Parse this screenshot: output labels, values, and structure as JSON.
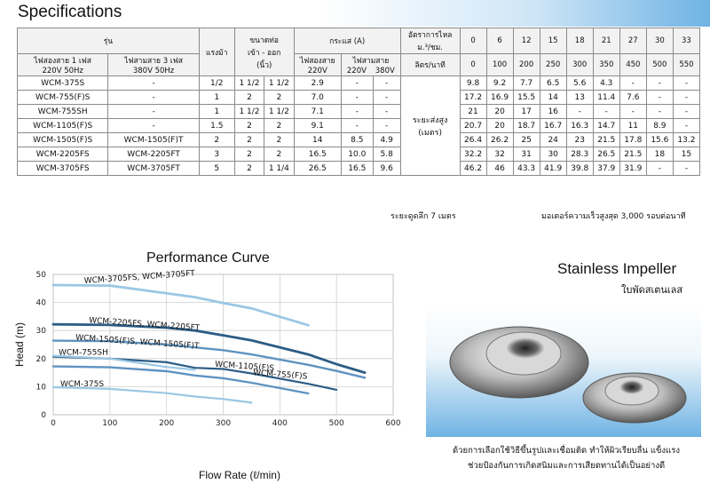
{
  "specifications": {
    "title": "Specifications",
    "headers": {
      "model": "รุ่น",
      "single_phase_l1": "ไฟสองสาย 1 เฟส",
      "single_phase_l2": "220V 50Hz",
      "three_phase_l1": "ไฟสามสาย 3 เฟส",
      "three_phase_l2": "380V 50Hz",
      "hp": "แรงม้า",
      "pipe_size_l1": "ขนาดท่อ",
      "pipe_size_l2": "เข้า - ออก",
      "pipe_size_l3": "(นิ้ว)",
      "current": "กระแส (A)",
      "current_2w": "ไฟสองสาย",
      "current_3w": "ไฟสามสาย",
      "v220": "220V",
      "v220b": "220V",
      "v380": "380V",
      "flow_rate_l1": "อัตราการไหล",
      "flow_rate_l2": "ม.³/ชม.",
      "lpm": "ลิตร/นาที",
      "head_l1": "ระยะส่งสูง",
      "head_l2": "(เมตร)"
    },
    "flow_m3h": [
      "0",
      "6",
      "12",
      "15",
      "18",
      "21",
      "27",
      "30",
      "33"
    ],
    "flow_lpm": [
      "0",
      "100",
      "200",
      "250",
      "300",
      "350",
      "450",
      "500",
      "550"
    ],
    "rows": [
      {
        "model1": "WCM-375S",
        "model3": "-",
        "hp": "1/2",
        "pipe_in": "1 1/2",
        "pipe_out": "1 1/2",
        "a220": "2.9",
        "b220": "-",
        "b380": "-",
        "heads": [
          "9.8",
          "9.2",
          "7.7",
          "6.5",
          "5.6",
          "4.3",
          "-",
          "-",
          "-"
        ]
      },
      {
        "model1": "WCM-755(F)S",
        "model3": "-",
        "hp": "1",
        "pipe_in": "2",
        "pipe_out": "2",
        "a220": "7.0",
        "b220": "-",
        "b380": "-",
        "heads": [
          "17.2",
          "16.9",
          "15.5",
          "14",
          "13",
          "11.4",
          "7.6",
          "-",
          "-"
        ]
      },
      {
        "model1": "WCM-755SH",
        "model3": "-",
        "hp": "1",
        "pipe_in": "1 1/2",
        "pipe_out": "1 1/2",
        "a220": "7.1",
        "b220": "-",
        "b380": "-",
        "heads": [
          "21",
          "20",
          "17",
          "16",
          "-",
          "-",
          "-",
          "-",
          "-"
        ]
      },
      {
        "model1": "WCM-1105(F)S",
        "model3": "-",
        "hp": "1.5",
        "pipe_in": "2",
        "pipe_out": "2",
        "a220": "9.1",
        "b220": "-",
        "b380": "-",
        "heads": [
          "20.7",
          "20",
          "18.7",
          "16.7",
          "16.3",
          "14.7",
          "11",
          "8.9",
          "-"
        ]
      },
      {
        "model1": "WCM-1505(F)S",
        "model3": "WCM-1505(F)T",
        "hp": "2",
        "pipe_in": "2",
        "pipe_out": "2",
        "a220": "14",
        "b220": "8.5",
        "b380": "4.9",
        "heads": [
          "26.4",
          "26.2",
          "25",
          "24",
          "23",
          "21.5",
          "17.8",
          "15.6",
          "13.2"
        ]
      },
      {
        "model1": "WCM-2205FS",
        "model3": "WCM-2205FT",
        "hp": "3",
        "pipe_in": "2",
        "pipe_out": "2",
        "a220": "16.5",
        "b220": "10.0",
        "b380": "5.8",
        "heads": [
          "32.2",
          "32",
          "31",
          "30",
          "28.3",
          "26.5",
          "21.5",
          "18",
          "15"
        ]
      },
      {
        "model1": "WCM-3705FS",
        "model3": "WCM-3705FT",
        "hp": "5",
        "pipe_in": "2",
        "pipe_out": "1 1/4",
        "a220": "26.5",
        "b220": "16.5",
        "b380": "9.6",
        "heads": [
          "46.2",
          "46",
          "43.3",
          "41.9",
          "39.8",
          "37.9",
          "31.9",
          "-",
          "-"
        ]
      }
    ],
    "note_suction": "ระยะดูดลึก 7 เมตร",
    "note_speed": "มอเตอร์ความเร็วสูงสุด 3,000 รอบต่อนาที"
  },
  "performance": {
    "title": "Performance Curve"
  },
  "chart_data": {
    "type": "line",
    "title": "Performance Curve",
    "xlabel": "Flow Rate (ℓ/min)",
    "ylabel": "Head (m)",
    "xlim": [
      0,
      600
    ],
    "ylim": [
      0,
      50
    ],
    "xticks": [
      "0",
      "100",
      "200",
      "300",
      "400",
      "500",
      "600"
    ],
    "yticks": [
      "0",
      "10",
      "20",
      "30",
      "40",
      "50"
    ],
    "grid": true,
    "series": [
      {
        "name": "WCM-3705FS, WCM-3705FT",
        "color": "#9ac7e4",
        "x": [
          0,
          100,
          200,
          250,
          300,
          350,
          450
        ],
        "y": [
          46.2,
          46,
          43.3,
          41.9,
          39.8,
          37.9,
          31.9
        ]
      },
      {
        "name": "WCM-2205FS, WCM-2205FT",
        "color": "#2c5d86",
        "x": [
          0,
          100,
          200,
          250,
          300,
          350,
          450,
          500,
          550
        ],
        "y": [
          32.2,
          32,
          31,
          30,
          28.3,
          26.5,
          21.5,
          18,
          15
        ]
      },
      {
        "name": "WCM-1505(F)S, WCM-1505(F)T",
        "color": "#5e93c1",
        "x": [
          0,
          100,
          200,
          250,
          300,
          350,
          450,
          500,
          550
        ],
        "y": [
          26.4,
          26.2,
          25,
          24,
          23,
          21.5,
          17.8,
          15.6,
          13.2
        ]
      },
      {
        "name": "WCM-1105(F)S",
        "color": "#2c5d86",
        "x": [
          0,
          100,
          200,
          250,
          300,
          350,
          450,
          500
        ],
        "y": [
          20.7,
          20,
          18.7,
          16.7,
          16.3,
          14.7,
          11,
          8.9
        ]
      },
      {
        "name": "WCM-755SH",
        "color": "#9ac7e4",
        "x": [
          0,
          100,
          200,
          250
        ],
        "y": [
          21,
          20,
          17,
          16
        ]
      },
      {
        "name": "WCM-755(F)S",
        "color": "#5e93c1",
        "x": [
          0,
          100,
          200,
          250,
          300,
          350,
          450
        ],
        "y": [
          17.2,
          16.9,
          15.5,
          14,
          13,
          11.4,
          7.6
        ]
      },
      {
        "name": "WCM-375S",
        "color": "#9ac7e4",
        "x": [
          0,
          100,
          200,
          250,
          300,
          350
        ],
        "y": [
          9.8,
          9.2,
          7.7,
          6.5,
          5.6,
          4.3
        ]
      }
    ]
  },
  "impeller": {
    "title": "Stainless Impeller",
    "subtitle": "ใบพัดสเตนเลส",
    "desc_line1": "ด้วยการเลือกใช้วิธีขึ้นรูปและเชื่อมติด ทำให้ผิวเรียบลื่น แข็งแรง",
    "desc_line2": "ช่วยป้องกันการเกิดสนิมและการเสียดทานได้เป็นอย่างดี"
  }
}
